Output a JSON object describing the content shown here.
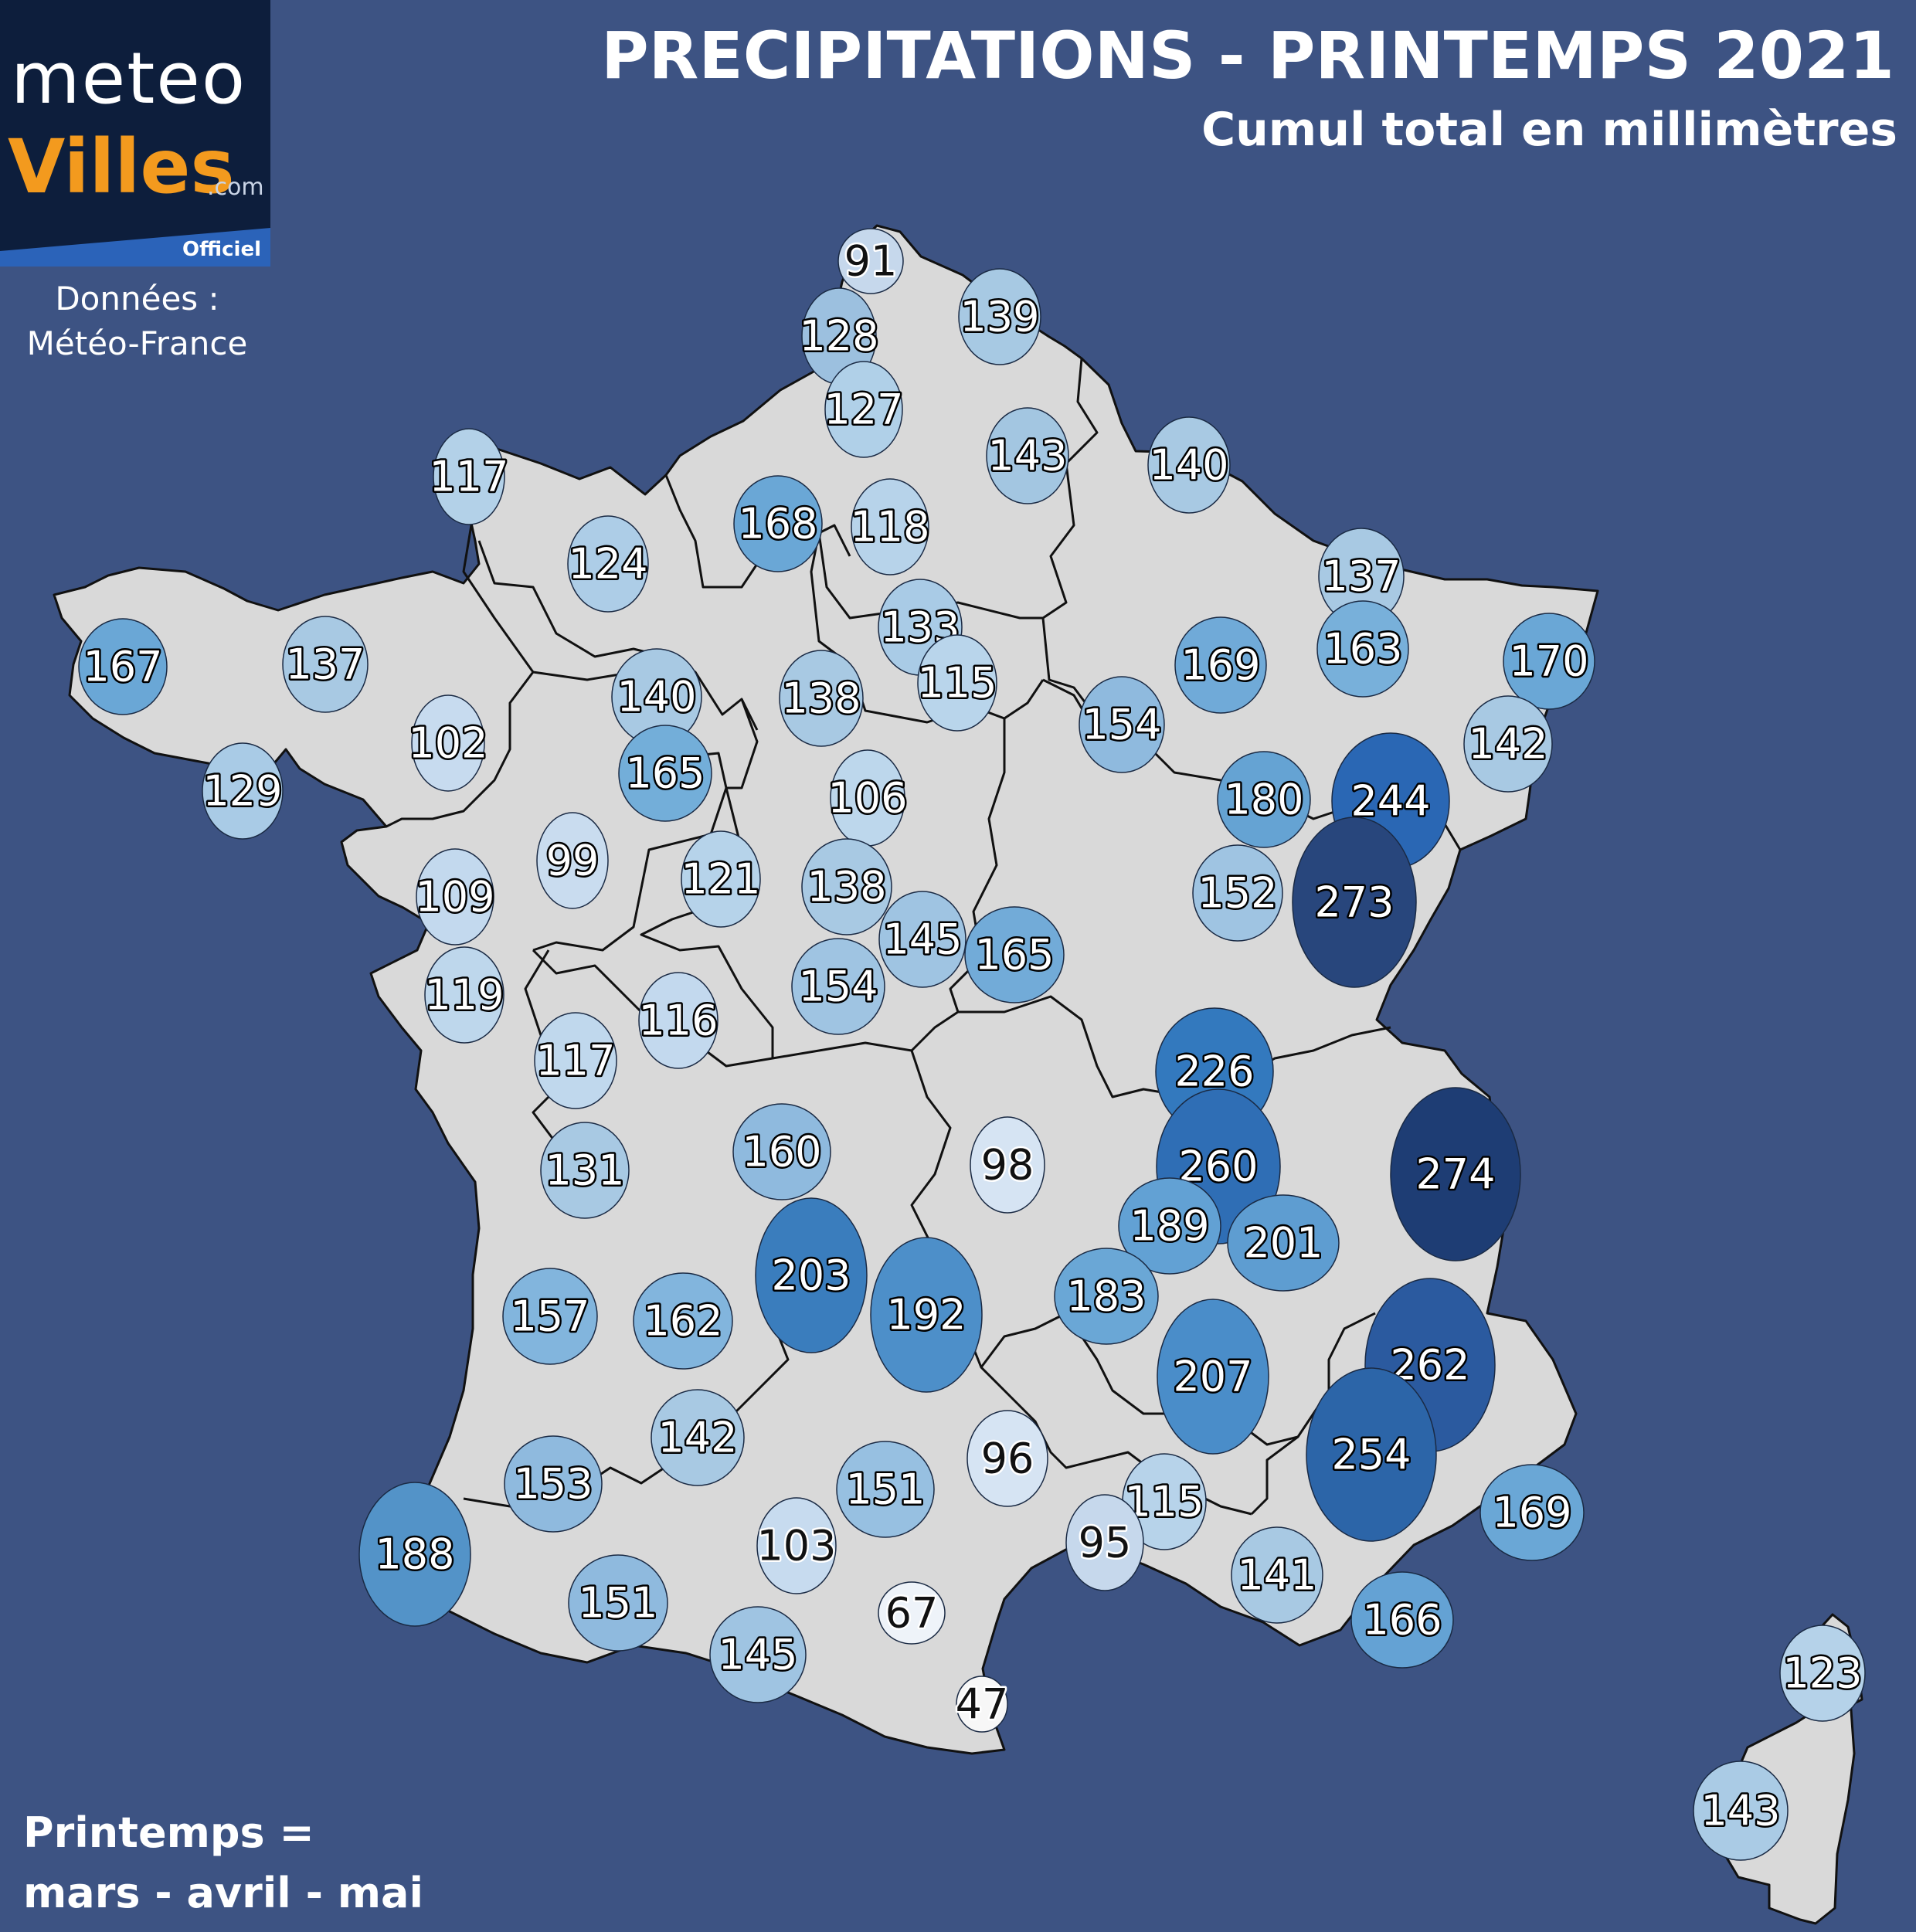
{
  "header": {
    "title": "PRECIPITATIONS - PRINTEMPS 2021",
    "subtitle": "Cumul total en millimètres"
  },
  "logo": {
    "meteo": "meteo",
    "villes": "Villes",
    "com": ".com",
    "officiel": "Officiel"
  },
  "source": {
    "label": "Données :",
    "name": "Météo-France"
  },
  "footnote": {
    "line1": "Printemps =",
    "line2": "mars - avril - mai"
  },
  "colors": {
    "background": "#3d5383",
    "land": "#d9d9d9",
    "border": "#111111",
    "logo_text_accent": "#f39a1e",
    "scale": [
      "#ffffff",
      "#c6dbef",
      "#9ecae1",
      "#6baed6",
      "#3182bd",
      "#1f5ea8",
      "#0d2d62"
    ]
  },
  "stations": [
    {
      "v": "91"
    },
    {
      "v": "128"
    },
    {
      "v": "139"
    },
    {
      "v": "127"
    },
    {
      "v": "143"
    },
    {
      "v": "117"
    },
    {
      "v": "168"
    },
    {
      "v": "118"
    },
    {
      "v": "140"
    },
    {
      "v": "124"
    },
    {
      "v": "137"
    },
    {
      "v": "133"
    },
    {
      "v": "167"
    },
    {
      "v": "137"
    },
    {
      "v": "140"
    },
    {
      "v": "138"
    },
    {
      "v": "115"
    },
    {
      "v": "169"
    },
    {
      "v": "163"
    },
    {
      "v": "170"
    },
    {
      "v": "102"
    },
    {
      "v": "154"
    },
    {
      "v": "142"
    },
    {
      "v": "129"
    },
    {
      "v": "165"
    },
    {
      "v": "106"
    },
    {
      "v": "180"
    },
    {
      "v": "244"
    },
    {
      "v": "99"
    },
    {
      "v": "109"
    },
    {
      "v": "121"
    },
    {
      "v": "138"
    },
    {
      "v": "152"
    },
    {
      "v": "273"
    },
    {
      "v": "145"
    },
    {
      "v": "165"
    },
    {
      "v": "119"
    },
    {
      "v": "154"
    },
    {
      "v": "116"
    },
    {
      "v": "117"
    },
    {
      "v": "226"
    },
    {
      "v": "160"
    },
    {
      "v": "98"
    },
    {
      "v": "260"
    },
    {
      "v": "131"
    },
    {
      "v": "274"
    },
    {
      "v": "189"
    },
    {
      "v": "201"
    },
    {
      "v": "203"
    },
    {
      "v": "157"
    },
    {
      "v": "162"
    },
    {
      "v": "192"
    },
    {
      "v": "183"
    },
    {
      "v": "262"
    },
    {
      "v": "207"
    },
    {
      "v": "142"
    },
    {
      "v": "96"
    },
    {
      "v": "254"
    },
    {
      "v": "153"
    },
    {
      "v": "151"
    },
    {
      "v": "115"
    },
    {
      "v": "169"
    },
    {
      "v": "188"
    },
    {
      "v": "103"
    },
    {
      "v": "95"
    },
    {
      "v": "141"
    },
    {
      "v": "151"
    },
    {
      "v": "67"
    },
    {
      "v": "166"
    },
    {
      "v": "145"
    },
    {
      "v": "123"
    },
    {
      "v": "47"
    },
    {
      "v": "143"
    }
  ]
}
